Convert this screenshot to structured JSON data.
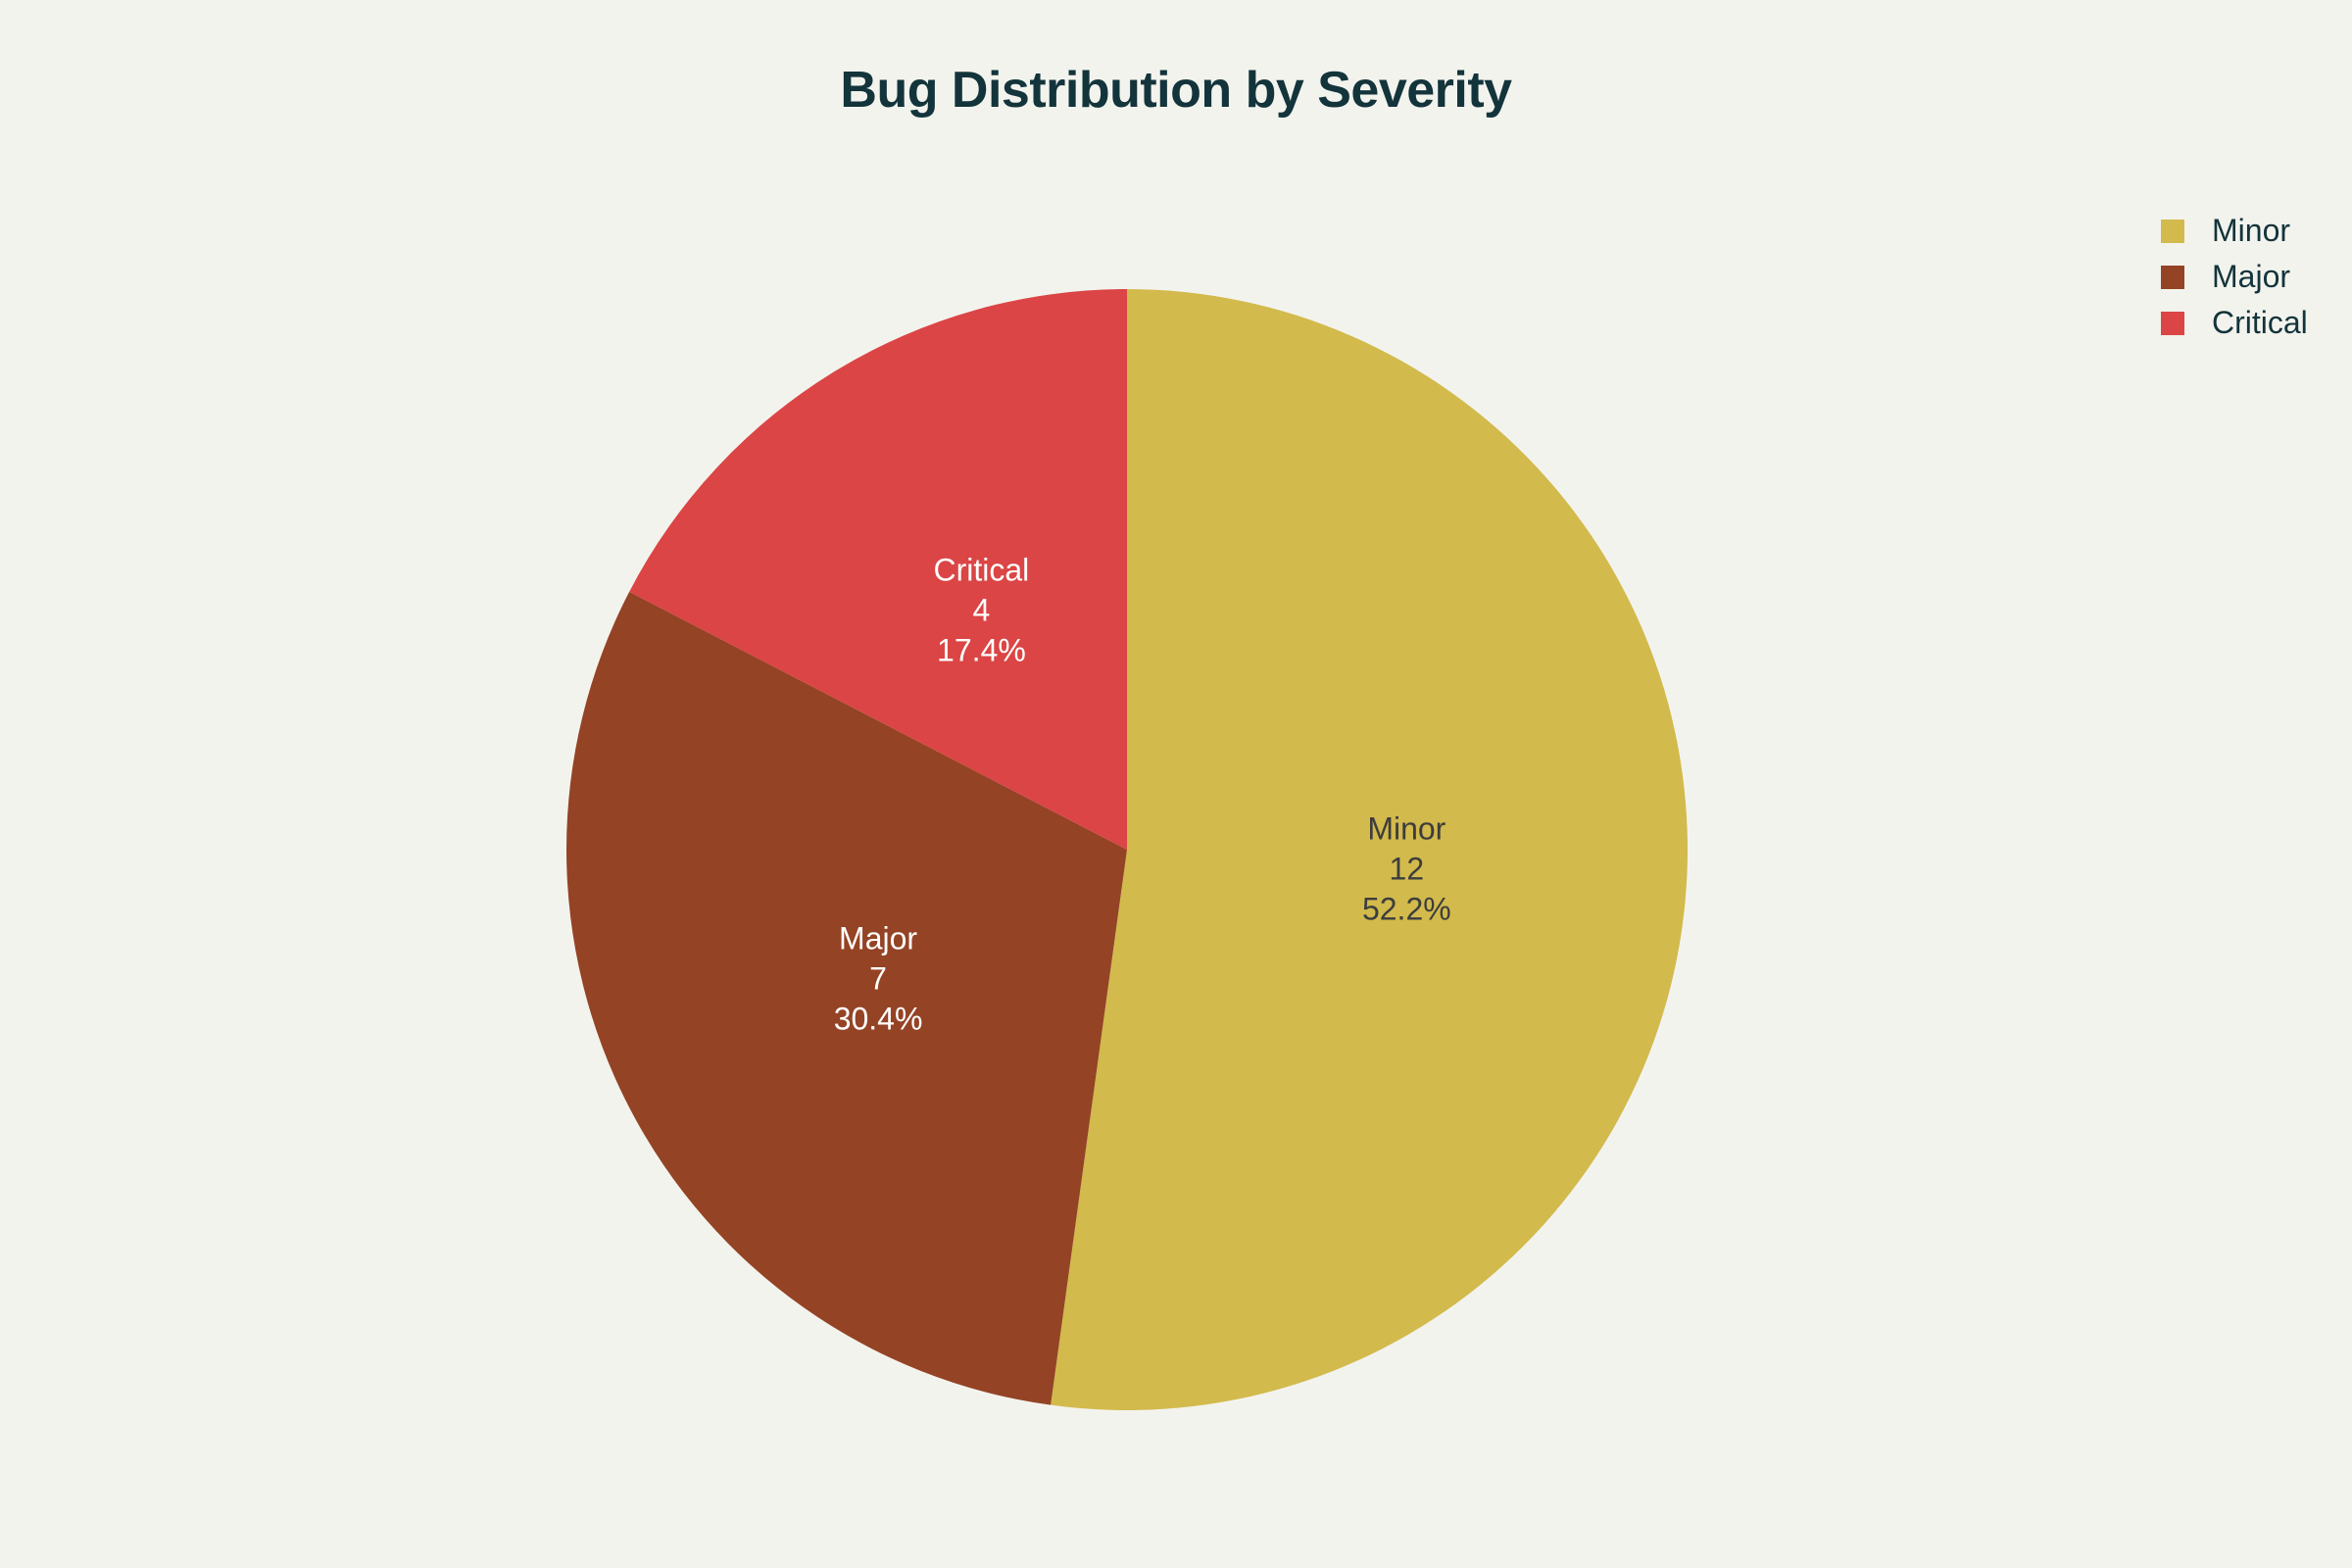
{
  "chart_data": {
    "type": "pie",
    "title": "Bug Distribution by Severity",
    "categories": [
      "Minor",
      "Major",
      "Critical"
    ],
    "values": [
      12,
      7,
      4
    ],
    "percent_labels": [
      "52.2%",
      "30.4%",
      "17.4%"
    ],
    "colors": [
      "#d2ba4c",
      "#944325",
      "#db4545"
    ],
    "label_colors": [
      "#3d3d3d",
      "#ffffff",
      "#ffffff"
    ],
    "start_angle_deg": 0,
    "direction": "clockwise",
    "legend_position": "top-right",
    "legend": [
      "Minor",
      "Major",
      "Critical"
    ]
  }
}
